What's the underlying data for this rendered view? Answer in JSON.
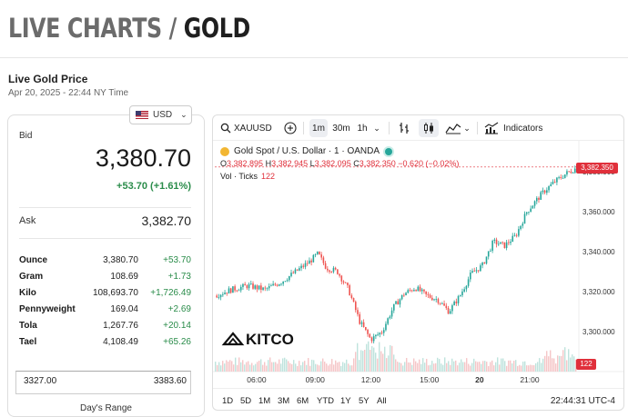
{
  "page": {
    "title_part1": "LIVE CHARTS /",
    "title_part2": "GOLD"
  },
  "subheader": {
    "title": "Live Gold Price",
    "timestamp": "Apr 20, 2025 - 22:44 NY Time"
  },
  "currency": {
    "selected": "USD"
  },
  "quote": {
    "bid_label": "Bid",
    "bid": "3,380.70",
    "change": "+53.70 (+1.61%)",
    "ask_label": "Ask",
    "ask": "3,382.70"
  },
  "units": [
    {
      "name": "Ounce",
      "price": "3,380.70",
      "change": "+53.70"
    },
    {
      "name": "Gram",
      "price": "108.69",
      "change": "+1.73"
    },
    {
      "name": "Kilo",
      "price": "108,693.70",
      "change": "+1,726.49"
    },
    {
      "name": "Pennyweight",
      "price": "169.04",
      "change": "+2.69"
    },
    {
      "name": "Tola",
      "price": "1,267.76",
      "change": "+20.14"
    },
    {
      "name": "Tael",
      "price": "4,108.49",
      "change": "+65.26"
    }
  ],
  "days_range": {
    "low": "3327.00",
    "high": "3383.60",
    "caption": "Day's Range"
  },
  "chart_toolbar": {
    "symbol": "XAUUSD",
    "intervals": [
      "1m",
      "30m",
      "1h"
    ],
    "selected_interval": "1m",
    "indicators_label": "Indicators"
  },
  "chart_legend": {
    "instrument": "Gold Spot / U.S. Dollar · 1 · OANDA",
    "o_label": "O",
    "o": "3,382.895",
    "h_label": "H",
    "h": "3,382.945",
    "l_label": "L",
    "l": "3,382.095",
    "c_label": "C",
    "c": "3,382.350",
    "change": "−0.620 (−0.02%)",
    "vol_label": "Vol · Ticks",
    "vol_value": "122",
    "last_price_tag": "3,382.350",
    "vol_tag": "122"
  },
  "chart_data": {
    "type": "line",
    "title": "",
    "xlabel": "",
    "ylabel": "",
    "x_ticks": [
      "06:00",
      "09:00",
      "12:00",
      "15:00",
      "20",
      "21:00"
    ],
    "y_ticks": [
      "3,300.000",
      "3,320.000",
      "3,340.000",
      "3,360.000",
      "3,380.000"
    ],
    "ylim": [
      3280,
      3390
    ],
    "series": [
      {
        "x": [
          0,
          0.6,
          1.2,
          1.8,
          2.4,
          3.0,
          3.4,
          3.7,
          4.0,
          4.4,
          4.8,
          5.2,
          5.6,
          6.0,
          6.4,
          6.8,
          7.2,
          7.6,
          8.0,
          8.4,
          8.8,
          9.2,
          9.6,
          10.0,
          10.4,
          10.8,
          11.2,
          11.5,
          11.8,
          12.2,
          12.6,
          13.0
        ],
        "y": [
          3318,
          3321,
          3323,
          3321,
          3325,
          3331,
          3335,
          3339,
          3332,
          3330,
          3321,
          3305,
          3296,
          3300,
          3312,
          3319,
          3322,
          3318,
          3316,
          3310,
          3318,
          3329,
          3333,
          3345,
          3343,
          3348,
          3360,
          3365,
          3370,
          3375,
          3379,
          3382
        ]
      }
    ],
    "volume_tag": "122",
    "last_price": 3382.35
  },
  "chart_bottom": {
    "ranges": [
      "1D",
      "5D",
      "1M",
      "3M",
      "6M",
      "YTD",
      "1Y",
      "5Y",
      "All"
    ],
    "clock": "22:44:31 UTC-4"
  },
  "watermark": "KITCO"
}
